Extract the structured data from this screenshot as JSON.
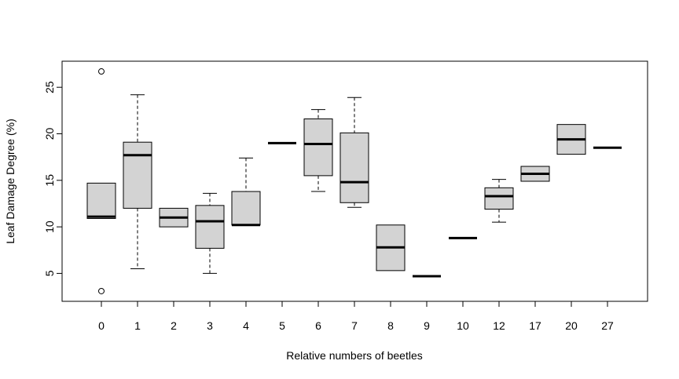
{
  "chart_data": {
    "type": "boxplot",
    "title": "",
    "xlabel": "Relative numbers of beetles",
    "ylabel": "Leaf Damage Degree (%)",
    "ylim": [
      2.0,
      27.8
    ],
    "yticks": [
      5,
      10,
      15,
      20,
      25
    ],
    "categories": [
      "0",
      "1",
      "2",
      "3",
      "4",
      "5",
      "6",
      "7",
      "8",
      "9",
      "10",
      "12",
      "17",
      "20",
      "27"
    ],
    "box_fill": "#d3d3d3",
    "boxes": [
      {
        "category": "0",
        "whisker_low": 10.9,
        "q1": 10.9,
        "median": 11.1,
        "q3": 14.7,
        "whisker_high": 14.7,
        "outliers": [
          26.7,
          3.1
        ]
      },
      {
        "category": "1",
        "whisker_low": 5.5,
        "q1": 12.0,
        "median": 17.7,
        "q3": 19.1,
        "whisker_high": 24.2,
        "outliers": []
      },
      {
        "category": "2",
        "whisker_low": 10.0,
        "q1": 10.0,
        "median": 11.0,
        "q3": 12.0,
        "whisker_high": 12.0,
        "outliers": []
      },
      {
        "category": "3",
        "whisker_low": 5.0,
        "q1": 7.7,
        "median": 10.6,
        "q3": 12.3,
        "whisker_high": 13.6,
        "outliers": []
      },
      {
        "category": "4",
        "whisker_low": 10.2,
        "q1": 10.2,
        "median": 10.2,
        "q3": 13.8,
        "whisker_high": 17.4,
        "outliers": []
      },
      {
        "category": "5",
        "whisker_low": 19.0,
        "q1": 19.0,
        "median": 19.0,
        "q3": 19.0,
        "whisker_high": 19.0,
        "outliers": []
      },
      {
        "category": "6",
        "whisker_low": 13.8,
        "q1": 15.5,
        "median": 18.9,
        "q3": 21.6,
        "whisker_high": 22.6,
        "outliers": []
      },
      {
        "category": "7",
        "whisker_low": 12.1,
        "q1": 12.6,
        "median": 14.8,
        "q3": 20.1,
        "whisker_high": 23.9,
        "outliers": []
      },
      {
        "category": "8",
        "whisker_low": 5.3,
        "q1": 5.3,
        "median": 7.8,
        "q3": 10.2,
        "whisker_high": 10.2,
        "outliers": []
      },
      {
        "category": "9",
        "whisker_low": 4.7,
        "q1": 4.7,
        "median": 4.7,
        "q3": 4.7,
        "whisker_high": 4.7,
        "outliers": []
      },
      {
        "category": "10",
        "whisker_low": 8.8,
        "q1": 8.8,
        "median": 8.8,
        "q3": 8.8,
        "whisker_high": 8.8,
        "outliers": []
      },
      {
        "category": "12",
        "whisker_low": 10.5,
        "q1": 11.9,
        "median": 13.3,
        "q3": 14.2,
        "whisker_high": 15.1,
        "outliers": []
      },
      {
        "category": "17",
        "whisker_low": 14.9,
        "q1": 14.9,
        "median": 15.7,
        "q3": 16.5,
        "whisker_high": 16.5,
        "outliers": []
      },
      {
        "category": "20",
        "whisker_low": 17.8,
        "q1": 17.8,
        "median": 19.4,
        "q3": 21.0,
        "whisker_high": 21.0,
        "outliers": []
      },
      {
        "category": "27",
        "whisker_low": 18.5,
        "q1": 18.5,
        "median": 18.5,
        "q3": 18.5,
        "whisker_high": 18.5,
        "outliers": []
      }
    ]
  }
}
